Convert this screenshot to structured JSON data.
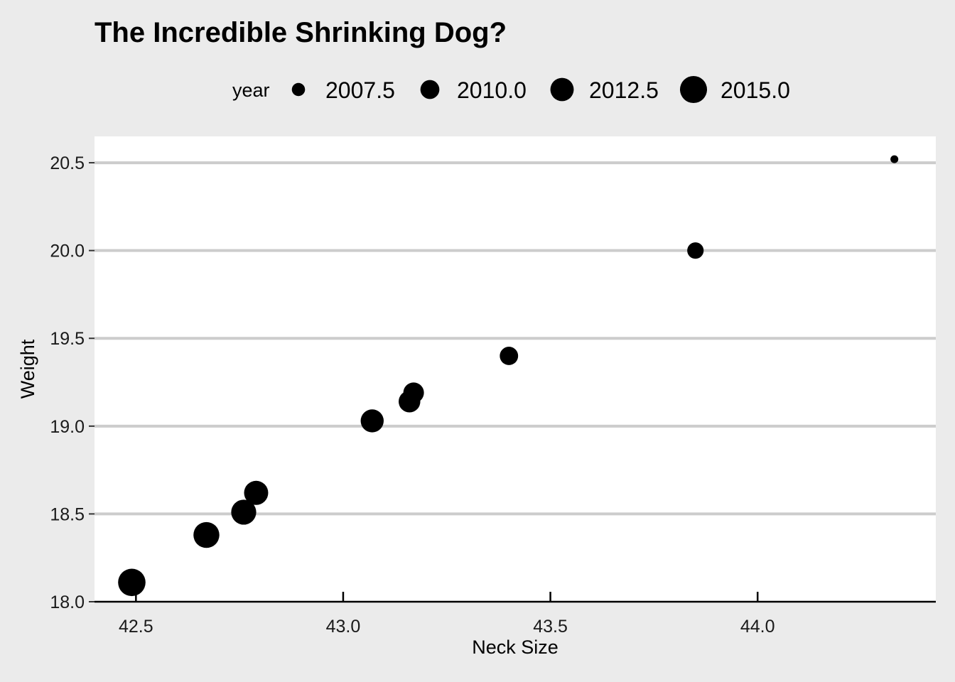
{
  "chart_data": {
    "type": "scatter",
    "title": "The Incredible Shrinking Dog?",
    "xlabel": "Neck Size",
    "ylabel": "Weight",
    "xlim": [
      42.4,
      44.43
    ],
    "ylim": [
      18.0,
      20.65
    ],
    "xticks": [
      42.5,
      43.0,
      43.5,
      44.0
    ],
    "xtick_labels": [
      "42.5",
      "43.0",
      "43.5",
      "44.0"
    ],
    "yticks": [
      18.0,
      18.5,
      19.0,
      19.5,
      20.0,
      20.5
    ],
    "ytick_labels": [
      "18.0",
      "18.5",
      "19.0",
      "19.5",
      "20.0",
      "20.5"
    ],
    "grid": "horizontal major gridlines",
    "size_legend": {
      "title": "year",
      "placement": "top",
      "entries": [
        {
          "label": "2007.5",
          "year": 2007.5
        },
        {
          "label": "2010.0",
          "year": 2010.0
        },
        {
          "label": "2012.5",
          "year": 2012.5
        },
        {
          "label": "2015.0",
          "year": 2015.0
        }
      ]
    },
    "points": [
      {
        "x": 44.33,
        "y": 20.52,
        "year": 2006
      },
      {
        "x": 43.85,
        "y": 20.0,
        "year": 2008.8
      },
      {
        "x": 43.4,
        "y": 19.4,
        "year": 2009.7
      },
      {
        "x": 43.17,
        "y": 19.19,
        "year": 2010.9
      },
      {
        "x": 43.16,
        "y": 19.14,
        "year": 2011.5
      },
      {
        "x": 43.07,
        "y": 19.03,
        "year": 2012.3
      },
      {
        "x": 42.79,
        "y": 18.62,
        "year": 2013
      },
      {
        "x": 42.76,
        "y": 18.51,
        "year": 2013.6
      },
      {
        "x": 42.67,
        "y": 18.38,
        "year": 2014.2
      },
      {
        "x": 42.49,
        "y": 18.11,
        "year": 2015.3
      }
    ],
    "colors": {
      "background": "#ebebeb",
      "panel": "#ffffff",
      "grid": "#cccccc",
      "points": "#000000"
    }
  }
}
